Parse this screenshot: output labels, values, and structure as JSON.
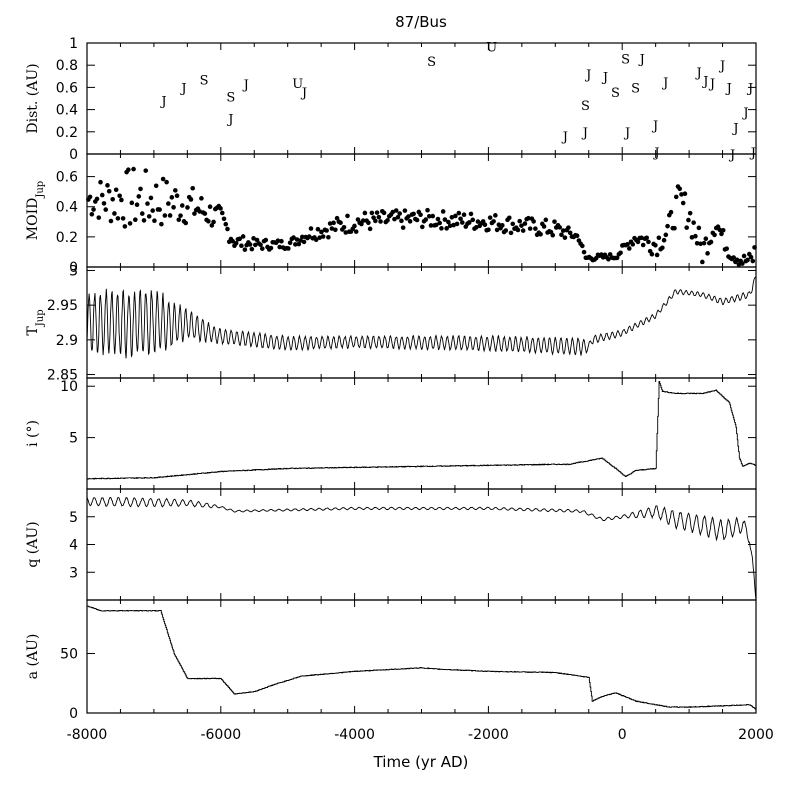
{
  "chart_data": {
    "title": "87/Bus",
    "xlabel": "Time (yr AD)",
    "xlim": [
      -8000,
      2000
    ],
    "x_ticks": [
      "-8000",
      "-6000",
      "-4000",
      "-2000",
      "0",
      "2000"
    ],
    "panels": [
      {
        "id": "dist",
        "ylabel": "Dist. (AU)",
        "type": "scatter-labels",
        "ylim": [
          0,
          1
        ],
        "y_ticks": [
          0,
          0.2,
          0.4,
          0.6,
          0.8,
          1
        ],
        "y_tick_labels": [
          "0",
          "0.2",
          "0.4",
          "0.6",
          "0.8",
          "1"
        ],
        "encounters": [
          {
            "planet": "J",
            "x": -6850,
            "y": 0.48
          },
          {
            "planet": "J",
            "x": -6550,
            "y": 0.6
          },
          {
            "planet": "S",
            "x": -6250,
            "y": 0.67
          },
          {
            "planet": "S",
            "x": -5850,
            "y": 0.52
          },
          {
            "planet": "J",
            "x": -5850,
            "y": 0.32
          },
          {
            "planet": "J",
            "x": -5620,
            "y": 0.63
          },
          {
            "planet": "U",
            "x": -4850,
            "y": 0.64
          },
          {
            "planet": "J",
            "x": -4750,
            "y": 0.56
          },
          {
            "planet": "S",
            "x": -2850,
            "y": 0.84
          },
          {
            "planet": "U",
            "x": -1950,
            "y": 0.97
          },
          {
            "planet": "J",
            "x": -850,
            "y": 0.16
          },
          {
            "planet": "J",
            "x": -550,
            "y": 0.2
          },
          {
            "planet": "S",
            "x": -550,
            "y": 0.44
          },
          {
            "planet": "J",
            "x": -500,
            "y": 0.72
          },
          {
            "planet": "J",
            "x": -250,
            "y": 0.7
          },
          {
            "planet": "S",
            "x": -100,
            "y": 0.56
          },
          {
            "planet": "S",
            "x": 50,
            "y": 0.86
          },
          {
            "planet": "J",
            "x": 80,
            "y": 0.2
          },
          {
            "planet": "S",
            "x": 200,
            "y": 0.6
          },
          {
            "planet": "J",
            "x": 300,
            "y": 0.86
          },
          {
            "planet": "J",
            "x": 500,
            "y": 0.26
          },
          {
            "planet": "J",
            "x": 520,
            "y": 0.02
          },
          {
            "planet": "J",
            "x": 650,
            "y": 0.65
          },
          {
            "planet": "J",
            "x": 1150,
            "y": 0.74
          },
          {
            "planet": "J",
            "x": 1250,
            "y": 0.66
          },
          {
            "planet": "J",
            "x": 1350,
            "y": 0.64
          },
          {
            "planet": "J",
            "x": 1500,
            "y": 0.8
          },
          {
            "planet": "J",
            "x": 1600,
            "y": 0.6
          },
          {
            "planet": "J",
            "x": 1700,
            "y": 0.24
          },
          {
            "planet": "J",
            "x": 1650,
            "y": 0.0
          },
          {
            "planet": "J",
            "x": 1850,
            "y": 0.38
          },
          {
            "planet": "J",
            "x": 1920,
            "y": 0.6
          },
          {
            "planet": "J",
            "x": 1960,
            "y": 0.02
          }
        ]
      },
      {
        "id": "moid",
        "ylabel": "MOID",
        "ylabel_sub": "Jup",
        "type": "scatter",
        "ylim": [
          0,
          0.75
        ],
        "y_ticks": [
          0,
          0.2,
          0.4,
          0.6
        ],
        "y_tick_labels": [
          "0",
          "0.2",
          "0.4",
          "0.6"
        ],
        "trend": {
          "x": [
            -8000,
            -7300,
            -6500,
            -6000,
            -5800,
            -5500,
            -5000,
            -4700,
            -4000,
            -3000,
            -2000,
            -1000,
            -650,
            -550,
            -100,
            200,
            500,
            700,
            850,
            1000,
            1200,
            1400,
            1600,
            1800,
            1950,
            2000
          ],
          "y": [
            0.45,
            0.45,
            0.42,
            0.32,
            0.17,
            0.15,
            0.15,
            0.22,
            0.3,
            0.32,
            0.3,
            0.25,
            0.2,
            0.06,
            0.07,
            0.2,
            0.15,
            0.25,
            0.45,
            0.35,
            0.1,
            0.3,
            0.1,
            0.04,
            0.05,
            0.15
          ]
        },
        "scatter_amp": {
          "x": [
            -8000,
            -7300,
            -6500,
            -6000,
            -5800,
            -5500,
            -5000,
            -4700,
            -4000,
            -3000,
            -2000,
            -1000,
            -550,
            -100,
            200,
            500,
            1000,
            1600,
            2000
          ],
          "y": [
            0.12,
            0.22,
            0.14,
            0.08,
            0.05,
            0.04,
            0.03,
            0.05,
            0.07,
            0.06,
            0.06,
            0.06,
            0.02,
            0.02,
            0.05,
            0.08,
            0.12,
            0.05,
            0.05
          ]
        }
      },
      {
        "id": "tjup",
        "ylabel": "T",
        "ylabel_sub": "Jup",
        "type": "line",
        "ylim": [
          2.845,
          3.005
        ],
        "y_ticks": [
          2.85,
          2.9,
          2.95,
          3
        ],
        "y_tick_labels": [
          "2.85",
          "2.9",
          "2.95",
          "3"
        ],
        "base": {
          "x": [
            -8000,
            -7000,
            -6500,
            -6000,
            -5000,
            -4000,
            -2000,
            -500,
            -450,
            0,
            500,
            800,
            1200,
            1500,
            1900,
            2000
          ],
          "y": [
            2.925,
            2.925,
            2.922,
            2.905,
            2.895,
            2.897,
            2.895,
            2.89,
            2.9,
            2.91,
            2.935,
            2.97,
            2.965,
            2.955,
            2.965,
            2.99
          ]
        },
        "amp": {
          "x": [
            -8000,
            -7500,
            -7000,
            -6500,
            -6000,
            -5500,
            -4000,
            -2000,
            -600,
            -500,
            0,
            1000,
            2000
          ],
          "y": [
            0.04,
            0.045,
            0.045,
            0.02,
            0.01,
            0.01,
            0.008,
            0.01,
            0.012,
            0.006,
            0.004,
            0.003,
            0.005
          ]
        },
        "period": 85
      },
      {
        "id": "incl",
        "ylabel": "i (°)",
        "type": "step",
        "ylim": [
          0,
          10.8
        ],
        "y_ticks": [
          5,
          10
        ],
        "y_tick_labels": [
          "5",
          "10"
        ],
        "x": [
          -8000,
          -7000,
          -6000,
          -5000,
          -4000,
          -3000,
          -2000,
          -1000,
          -800,
          -300,
          -100,
          50,
          200,
          500,
          550,
          600,
          800,
          1200,
          1400,
          1600,
          1700,
          1750,
          1800,
          1900,
          2000
        ],
        "y": [
          1.0,
          1.1,
          1.7,
          2.0,
          2.1,
          2.2,
          2.3,
          2.4,
          2.4,
          3.0,
          2.0,
          1.2,
          1.8,
          2.0,
          10.5,
          9.5,
          9.3,
          9.3,
          9.6,
          8.4,
          6.0,
          3.0,
          2.2,
          2.5,
          2.3
        ]
      },
      {
        "id": "q",
        "ylabel": "q (AU)",
        "type": "line",
        "ylim": [
          2.0,
          6.0
        ],
        "y_ticks": [
          3,
          4,
          5
        ],
        "y_tick_labels": [
          "3",
          "4",
          "5"
        ],
        "base": {
          "x": [
            -8000,
            -6500,
            -6000,
            -5800,
            -4000,
            -2000,
            -600,
            -300,
            0,
            500,
            800,
            1000,
            1200,
            1500,
            1800,
            1900,
            2000
          ],
          "y": [
            5.55,
            5.5,
            5.35,
            5.2,
            5.3,
            5.3,
            5.2,
            4.9,
            5.0,
            5.2,
            4.9,
            4.8,
            4.7,
            4.5,
            4.7,
            4.3,
            2.1
          ]
        },
        "amp": {
          "x": [
            -8000,
            -7000,
            -6200,
            -6000,
            -4000,
            -2000,
            0,
            800,
            1500,
            2000
          ],
          "y": [
            0.15,
            0.15,
            0.08,
            0.03,
            0.04,
            0.04,
            0.05,
            0.3,
            0.35,
            0.2
          ]
        },
        "period": 120
      },
      {
        "id": "a",
        "ylabel": "a (AU)",
        "type": "step",
        "ylim": [
          0,
          95
        ],
        "y_ticks": [
          0,
          50
        ],
        "y_tick_labels": [
          "0",
          "50"
        ],
        "x": [
          -8000,
          -7800,
          -6900,
          -6700,
          -6500,
          -6000,
          -5800,
          -5500,
          -5200,
          -4800,
          -4000,
          -3000,
          -2800,
          -2000,
          -1000,
          -500,
          -450,
          -300,
          -100,
          200,
          500,
          700,
          1000,
          1500,
          1900,
          2000
        ],
        "y": [
          90,
          86,
          86,
          50,
          29,
          29,
          16,
          18,
          24,
          31,
          35,
          38,
          37,
          35,
          34,
          30,
          10,
          14,
          17,
          10,
          7,
          5,
          5,
          6,
          7,
          3
        ]
      }
    ]
  }
}
